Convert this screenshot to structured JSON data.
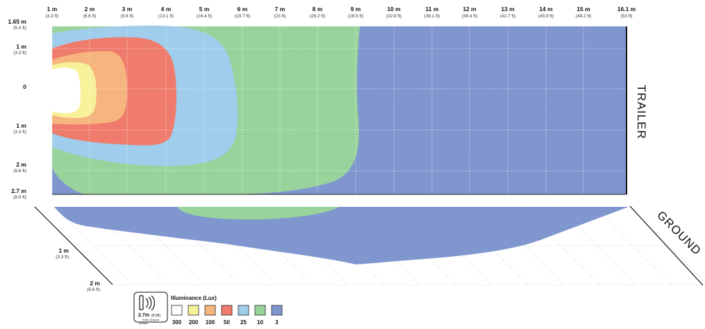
{
  "top_scale": [
    {
      "m": "1 m",
      "ft": "(3.3 ft)"
    },
    {
      "m": "2 m",
      "ft": "(6.6 ft)"
    },
    {
      "m": "3 m",
      "ft": "(9.8 ft)"
    },
    {
      "m": "4 m",
      "ft": "(13.1 ft)"
    },
    {
      "m": "5 m",
      "ft": "(16.4 ft)"
    },
    {
      "m": "6 m",
      "ft": "(19.7 ft)"
    },
    {
      "m": "7 m",
      "ft": "(23 ft)"
    },
    {
      "m": "8 m",
      "ft": "(26.2 ft)"
    },
    {
      "m": "9 m",
      "ft": "(29.5 ft)"
    },
    {
      "m": "10 m",
      "ft": "(32.8 ft)"
    },
    {
      "m": "11 m",
      "ft": "(36.1 ft)"
    },
    {
      "m": "12 m",
      "ft": "(39.4 ft)"
    },
    {
      "m": "13 m",
      "ft": "(42.7 ft)"
    },
    {
      "m": "14 m",
      "ft": "(45.9 ft)"
    },
    {
      "m": "15 m",
      "ft": "(49.2 ft)"
    },
    {
      "m": "16.1 m",
      "ft": "(53 ft)"
    }
  ],
  "left_scale": [
    {
      "m": "1.65 m",
      "ft": "(5.4 ft)"
    },
    {
      "m": "1 m",
      "ft": "(3.3 ft)"
    },
    {
      "m": "0",
      "ft": ""
    },
    {
      "m": "1 m",
      "ft": "(3.3 ft)"
    },
    {
      "m": "2 m",
      "ft": "(6.6 ft)"
    },
    {
      "m": "2.7 m",
      "ft": "(8.9 ft)"
    }
  ],
  "ground_scale": [
    {
      "m": "1 m",
      "ft": "(3.3 ft)"
    },
    {
      "m": "2 m",
      "ft": "(6.6 ft)"
    }
  ],
  "labels": {
    "trailer": "TRAILER",
    "ground": "GROUND"
  },
  "badge": {
    "height": "2.7m",
    "height_ft": "(8.9ft)",
    "note": "From Ground",
    "note_cut": "surface"
  },
  "legend": {
    "title": "Illuminance (Lux)",
    "items": [
      {
        "value": "300",
        "color": "#ffffff"
      },
      {
        "value": "200",
        "color": "#f7f29a"
      },
      {
        "value": "100",
        "color": "#f6b57e"
      },
      {
        "value": "50",
        "color": "#ef7b6c"
      },
      {
        "value": "25",
        "color": "#9fcdeb"
      },
      {
        "value": "10",
        "color": "#98d39c"
      },
      {
        "value": "3",
        "color": "#7f96cf"
      }
    ]
  },
  "colors": {
    "lux_300": "#ffffff",
    "lux_200": "#f7f29a",
    "lux_100": "#f6b57e",
    "lux_50": "#ef7b6c",
    "lux_25": "#9fcdeb",
    "lux_10": "#98d39c",
    "lux_3": "#7f96cf"
  }
}
